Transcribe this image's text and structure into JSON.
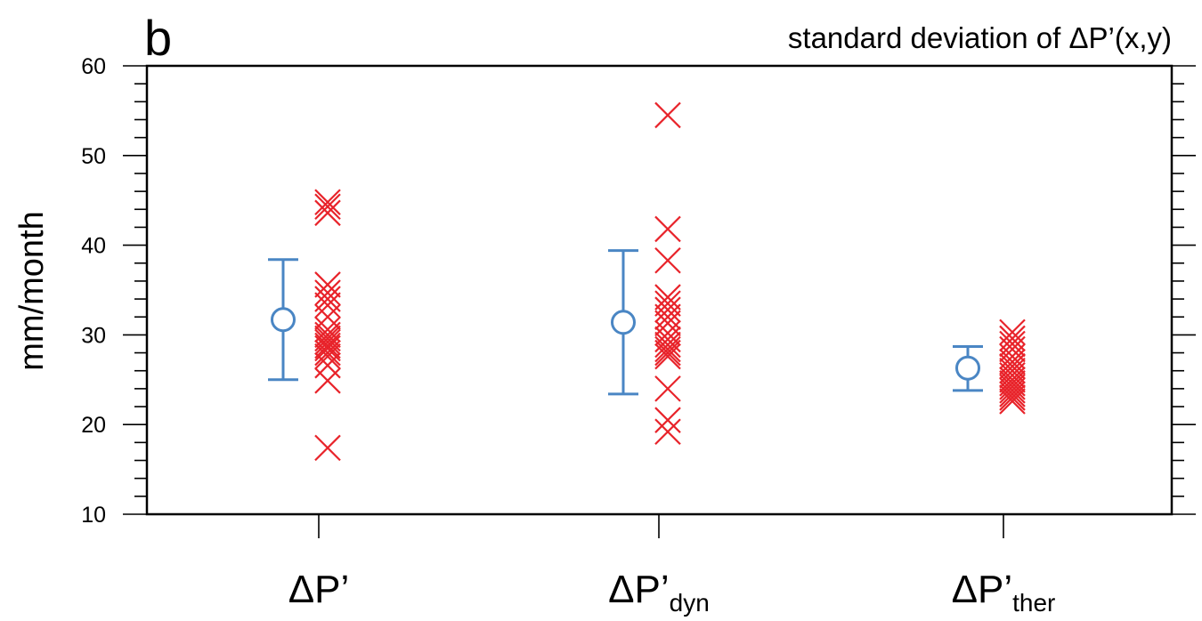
{
  "panel_label": "b",
  "chart_data": {
    "type": "scatter",
    "title": "standard deviation of ΔP’(x,y)",
    "ylabel": "mm/month",
    "ylim": [
      10,
      60
    ],
    "y_major_ticks": [
      10,
      20,
      30,
      40,
      50,
      60
    ],
    "y_minor_step": 2,
    "categories": [
      {
        "base": "ΔP’",
        "sub": ""
      },
      {
        "base": "ΔP’",
        "sub": "dyn"
      },
      {
        "base": "ΔP’",
        "sub": "ther"
      }
    ],
    "ensemble_mean": [
      {
        "category": 0,
        "mean": 31.7,
        "low": 25.0,
        "high": 38.4
      },
      {
        "category": 1,
        "mean": 31.4,
        "low": 23.4,
        "high": 39.4
      },
      {
        "category": 2,
        "mean": 26.3,
        "low": 23.8,
        "high": 28.7
      }
    ],
    "members": [
      [
        44.8,
        44.3,
        43.6,
        35.6,
        34.7,
        34.0,
        33.3,
        32.0,
        30.6,
        30.0,
        29.6,
        29.2,
        28.8,
        28.5,
        28.0,
        27.6,
        26.6,
        24.9,
        17.4
      ],
      [
        54.5,
        41.8,
        38.3,
        34.2,
        33.5,
        32.8,
        32.0,
        31.3,
        30.2,
        29.5,
        28.9,
        28.4,
        28.0,
        27.6,
        24.0,
        20.5,
        19.2
      ],
      [
        30.3,
        29.6,
        29.0,
        28.4,
        27.6,
        27.0,
        26.5,
        26.0,
        25.5,
        25.0,
        24.6,
        24.2,
        23.8,
        23.4,
        23.0,
        22.6
      ]
    ],
    "colors": {
      "mean": "#4a86c4",
      "members": "#e8232a"
    }
  }
}
